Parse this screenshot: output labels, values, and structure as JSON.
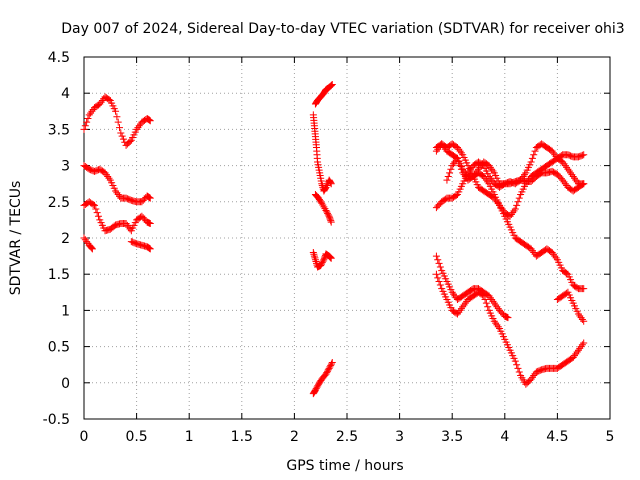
{
  "chart_data": {
    "type": "scatter",
    "title": "Day 007 of 2024, Sidereal Day-to-day VTEC variation (SDTVAR) for receiver ohi3",
    "xlabel": "GPS time / hours",
    "ylabel": "SDTVAR / TECUs",
    "xlim": [
      0,
      5
    ],
    "ylim": [
      -0.5,
      4.5
    ],
    "xticks": [
      0,
      0.5,
      1,
      1.5,
      2,
      2.5,
      3,
      3.5,
      4,
      4.5,
      5
    ],
    "yticks": [
      -0.5,
      0,
      0.5,
      1,
      1.5,
      2,
      2.5,
      3,
      3.5,
      4,
      4.5
    ],
    "xtick_labels": [
      "0",
      "0.5",
      "1",
      "1.5",
      "2",
      "2.5",
      "3",
      "3.5",
      "4",
      "4.5",
      "5"
    ],
    "ytick_labels": [
      "-0.5",
      "0",
      "0.5",
      "1",
      "1.5",
      "2",
      "2.5",
      "3",
      "3.5",
      "4",
      "4.5"
    ],
    "grid": true,
    "marker": "+",
    "color": "#ff0000",
    "series": [
      {
        "name": "s1",
        "x": [
          0.0,
          0.05,
          0.1,
          0.15,
          0.2,
          0.25,
          0.3,
          0.35,
          0.4,
          0.45,
          0.5,
          0.55,
          0.6,
          0.63
        ],
        "y": [
          3.5,
          3.7,
          3.8,
          3.85,
          3.95,
          3.9,
          3.75,
          3.45,
          3.28,
          3.35,
          3.5,
          3.6,
          3.65,
          3.62
        ]
      },
      {
        "name": "s2",
        "x": [
          0.0,
          0.05,
          0.1,
          0.15,
          0.2,
          0.25,
          0.3,
          0.35,
          0.4,
          0.45,
          0.5,
          0.55,
          0.6,
          0.63
        ],
        "y": [
          3.0,
          2.95,
          2.92,
          2.95,
          2.9,
          2.8,
          2.65,
          2.55,
          2.55,
          2.52,
          2.5,
          2.5,
          2.58,
          2.55
        ]
      },
      {
        "name": "s3",
        "x": [
          0.0,
          0.05,
          0.1,
          0.15,
          0.2,
          0.25,
          0.3,
          0.35,
          0.4,
          0.45,
          0.5,
          0.55,
          0.6,
          0.63
        ],
        "y": [
          2.45,
          2.5,
          2.45,
          2.25,
          2.1,
          2.12,
          2.18,
          2.2,
          2.2,
          2.1,
          2.25,
          2.3,
          2.22,
          2.2
        ]
      },
      {
        "name": "s4",
        "x": [
          0.0,
          0.05,
          0.08
        ],
        "y": [
          2.0,
          1.9,
          1.85
        ]
      },
      {
        "name": "s5",
        "x": [
          0.45,
          0.5,
          0.55,
          0.6,
          0.63
        ],
        "y": [
          1.95,
          1.92,
          1.9,
          1.88,
          1.85
        ]
      },
      {
        "name": "s6",
        "x": [
          2.2,
          2.22,
          2.25,
          2.28,
          2.3,
          2.33,
          2.36
        ],
        "y": [
          3.85,
          3.9,
          3.95,
          4.0,
          4.05,
          4.08,
          4.12
        ]
      },
      {
        "name": "s7",
        "x": [
          2.18,
          2.19,
          2.2,
          2.21,
          2.22,
          2.24,
          2.26,
          2.28,
          2.3,
          2.33,
          2.35
        ],
        "y": [
          3.7,
          3.55,
          3.4,
          3.25,
          3.05,
          2.9,
          2.75,
          2.65,
          2.7,
          2.8,
          2.75
        ]
      },
      {
        "name": "s8",
        "x": [
          2.2,
          2.23,
          2.26,
          2.3,
          2.33,
          2.35
        ],
        "y": [
          2.6,
          2.55,
          2.48,
          2.38,
          2.3,
          2.22
        ]
      },
      {
        "name": "s9",
        "x": [
          2.18,
          2.2,
          2.22,
          2.25,
          2.28,
          2.3,
          2.33,
          2.35
        ],
        "y": [
          1.8,
          1.7,
          1.6,
          1.62,
          1.7,
          1.78,
          1.75,
          1.72
        ]
      },
      {
        "name": "s10",
        "x": [
          2.18,
          2.2,
          2.23,
          2.26,
          2.3,
          2.33,
          2.36
        ],
        "y": [
          -0.15,
          -0.1,
          -0.02,
          0.05,
          0.12,
          0.2,
          0.28
        ]
      },
      {
        "name": "s11",
        "x": [
          3.35,
          3.4,
          3.45,
          3.5,
          3.55,
          3.6,
          3.65,
          3.7,
          3.75,
          3.8,
          3.85,
          3.9,
          3.95,
          4.0,
          4.05,
          4.1,
          4.15,
          4.2,
          4.25,
          4.3,
          4.35,
          4.4,
          4.45,
          4.5,
          4.55,
          4.6,
          4.65,
          4.7,
          4.75
        ],
        "y": [
          3.2,
          3.3,
          3.2,
          3.15,
          3.1,
          2.9,
          2.8,
          2.85,
          2.9,
          2.85,
          2.75,
          2.6,
          2.45,
          2.3,
          2.15,
          2.0,
          1.95,
          1.9,
          1.85,
          1.75,
          1.8,
          1.85,
          1.8,
          1.7,
          1.55,
          1.5,
          1.35,
          1.3,
          1.3
        ]
      },
      {
        "name": "s12",
        "x": [
          3.35,
          3.4,
          3.45,
          3.5,
          3.55,
          3.6,
          3.65,
          3.7,
          3.75,
          3.8,
          3.85,
          3.9,
          3.95,
          4.0,
          4.05,
          4.1,
          4.15,
          4.2,
          4.25,
          4.3,
          4.35,
          4.4,
          4.45,
          4.5,
          4.55,
          4.6,
          4.65,
          4.7,
          4.75
        ],
        "y": [
          3.25,
          3.3,
          3.25,
          3.3,
          3.25,
          3.15,
          3.0,
          2.85,
          2.7,
          2.65,
          2.6,
          2.55,
          2.45,
          2.35,
          2.3,
          2.4,
          2.6,
          2.75,
          2.85,
          2.9,
          2.95,
          3.0,
          3.05,
          3.1,
          3.15,
          3.15,
          3.12,
          3.12,
          3.15
        ]
      },
      {
        "name": "s13",
        "x": [
          3.35,
          3.4,
          3.45,
          3.5,
          3.55,
          3.6,
          3.65,
          3.7,
          3.75,
          3.8,
          3.85,
          3.9,
          3.95,
          4.0,
          4.05,
          4.1,
          4.15,
          4.2,
          4.25,
          4.3,
          4.35,
          4.4,
          4.45,
          4.5,
          4.55,
          4.6,
          4.65,
          4.7,
          4.75
        ],
        "y": [
          2.42,
          2.5,
          2.55,
          2.55,
          2.6,
          2.75,
          2.9,
          3.0,
          3.05,
          3.0,
          2.85,
          2.75,
          2.7,
          2.75,
          2.75,
          2.78,
          2.8,
          2.78,
          2.78,
          2.85,
          2.9,
          2.9,
          2.92,
          2.88,
          2.8,
          2.7,
          2.65,
          2.7,
          2.75
        ]
      },
      {
        "name": "s14",
        "x": [
          3.45,
          3.5,
          3.55,
          3.6,
          3.65,
          3.7,
          3.75,
          3.8,
          3.85,
          3.9,
          3.95,
          4.0,
          4.05,
          4.1,
          4.15,
          4.2,
          4.25,
          4.3,
          4.35,
          4.4,
          4.45,
          4.5,
          4.55,
          4.6,
          4.65,
          4.7,
          4.75
        ],
        "y": [
          2.8,
          3.0,
          3.1,
          2.95,
          2.85,
          2.85,
          2.95,
          3.05,
          3.0,
          2.9,
          2.75,
          2.75,
          2.78,
          2.75,
          2.8,
          2.9,
          3.05,
          3.25,
          3.3,
          3.25,
          3.2,
          3.1,
          3.05,
          2.95,
          2.85,
          2.75,
          2.75
        ]
      },
      {
        "name": "s15",
        "x": [
          3.35,
          3.4,
          3.45,
          3.5,
          3.55,
          3.6,
          3.65,
          3.7,
          3.75,
          3.8,
          3.85,
          3.9,
          3.95,
          4.0,
          4.05,
          4.1,
          4.15,
          4.2,
          4.25,
          4.3,
          4.35,
          4.4,
          4.45,
          4.5,
          4.55,
          4.6,
          4.65,
          4.7,
          4.75
        ],
        "y": [
          1.5,
          1.3,
          1.15,
          1.0,
          0.95,
          1.05,
          1.15,
          1.2,
          1.25,
          1.2,
          1.0,
          0.85,
          0.75,
          0.6,
          0.45,
          0.3,
          0.1,
          -0.02,
          0.05,
          0.15,
          0.18,
          0.2,
          0.2,
          0.2,
          0.25,
          0.3,
          0.35,
          0.45,
          0.55
        ]
      },
      {
        "name": "s16",
        "x": [
          3.35,
          3.4,
          3.45,
          3.5,
          3.55,
          3.6,
          3.65,
          3.7,
          3.75,
          3.8,
          3.85,
          3.9,
          3.95,
          4.0,
          4.03
        ],
        "y": [
          1.75,
          1.55,
          1.4,
          1.25,
          1.15,
          1.2,
          1.25,
          1.3,
          1.3,
          1.25,
          1.2,
          1.1,
          1.0,
          0.92,
          0.9
        ]
      },
      {
        "name": "s17",
        "x": [
          4.5,
          4.55,
          4.6,
          4.65,
          4.7,
          4.75
        ],
        "y": [
          1.15,
          1.2,
          1.25,
          1.1,
          0.95,
          0.85
        ]
      }
    ]
  }
}
